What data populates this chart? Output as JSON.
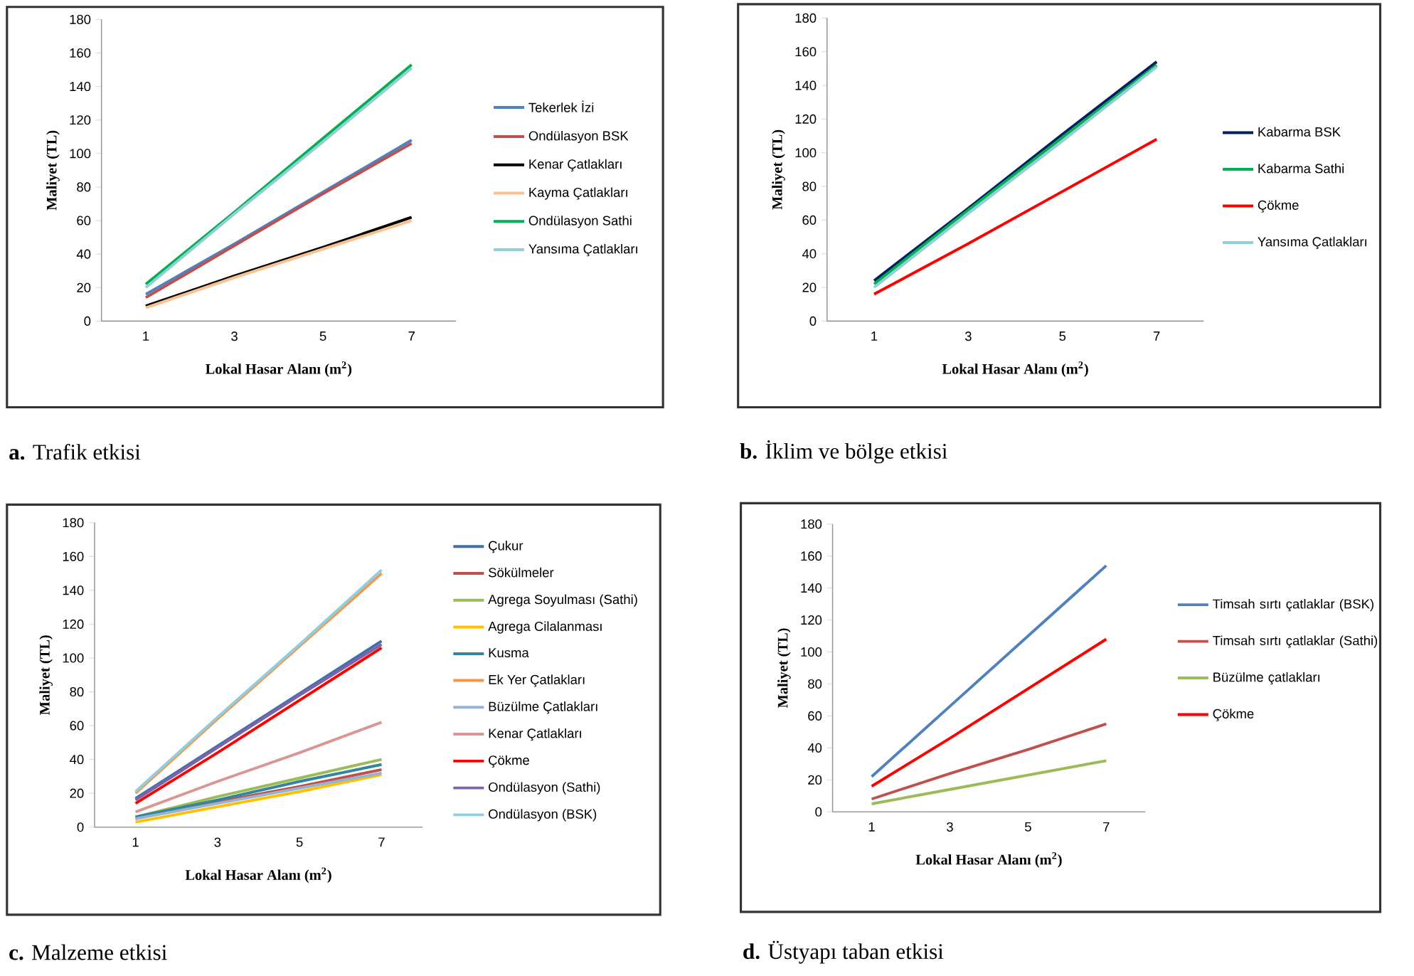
{
  "chart_data": [
    {
      "type": "line",
      "title": "**a.**  Trafik etkisi",
      "xlabel": "Lokal Hasar Alanı (m$^{2}$)",
      "ylabel": "Maliyet (TL)",
      "categories": [
        "1",
        "3",
        "5",
        "7"
      ],
      "ylim": [
        0,
        180
      ],
      "yticks": [
        0,
        20,
        40,
        60,
        80,
        100,
        120,
        140,
        160,
        180
      ],
      "legend": "right",
      "series": [
        {
          "name": "Tekerlek İzi",
          "color": "#4f81bd",
          "values": [
            16,
            46,
            77,
            108
          ]
        },
        {
          "name": "Ondülasyon BSK",
          "color": "#c0504d",
          "values": [
            14,
            45,
            76,
            106
          ]
        },
        {
          "name": "Kenar Çatlakları",
          "color": "#000000",
          "values": [
            9,
            27,
            44,
            62
          ]
        },
        {
          "name": "Kayma Çatlakları",
          "color": "#fac090",
          "values": [
            8,
            26,
            43,
            60
          ]
        },
        {
          "name": "Ondülasyon Sathi",
          "color": "#00b050",
          "values": [
            22,
            65,
            109,
            153
          ]
        },
        {
          "name": "Yansıma Çatlakları",
          "color": "#92cddc",
          "values": [
            20,
            64,
            107,
            151
          ]
        }
      ]
    },
    {
      "type": "line",
      "title": "**b.**  İklim ve bölge etkisi",
      "xlabel": "Lokal Hasar Alanı (m$^{2}$)",
      "ylabel": "Maliyet (TL)",
      "categories": [
        "1",
        "3",
        "5",
        "7"
      ],
      "ylim": [
        0,
        180
      ],
      "yticks": [
        0,
        20,
        40,
        60,
        80,
        100,
        120,
        140,
        160,
        180
      ],
      "legend": "right",
      "series": [
        {
          "name": "Kabarma BSK",
          "color": "#002060",
          "values": [
            24,
            67,
            111,
            154
          ]
        },
        {
          "name": "Kabarma Sathi",
          "color": "#00b050",
          "values": [
            22,
            66,
            109,
            152
          ]
        },
        {
          "name": "Çökme",
          "color": "#ff0000",
          "values": [
            16,
            46,
            77,
            108
          ]
        },
        {
          "name": "Yansıma Çatlakları",
          "color": "#92cddc",
          "values": [
            20,
            64,
            107,
            151
          ]
        }
      ]
    },
    {
      "type": "line",
      "title": "**c.**  Malzeme etkisi",
      "xlabel": "Lokal Hasar Alanı (m$^{2}$)",
      "ylabel": "Maliyet (TL)",
      "categories": [
        "1",
        "3",
        "5",
        "7"
      ],
      "ylim": [
        0,
        180
      ],
      "yticks": [
        0,
        20,
        40,
        60,
        80,
        100,
        120,
        140,
        160,
        180
      ],
      "legend": "right",
      "series": [
        {
          "name": "Çukur",
          "color": "#3f6fb0",
          "values": [
            17,
            48,
            79,
            110
          ]
        },
        {
          "name": "Sökülmeler",
          "color": "#c0504d",
          "values": [
            5,
            15,
            24,
            34
          ]
        },
        {
          "name": "Agrega Soyulması (Sathi)",
          "color": "#9bbb59",
          "values": [
            6,
            18,
            29,
            40
          ]
        },
        {
          "name": "Agrega Cilalanması",
          "color": "#ffc000",
          "values": [
            3,
            12,
            21,
            31
          ]
        },
        {
          "name": "Kusma",
          "color": "#31859c",
          "values": [
            6,
            16,
            27,
            37
          ]
        },
        {
          "name": "Ek Yer Çatlakları",
          "color": "#f79646",
          "values": [
            20,
            64,
            107,
            150
          ]
        },
        {
          "name": "Büzülme Çatlakları",
          "color": "#95b3d7",
          "values": [
            5,
            14,
            23,
            32
          ]
        },
        {
          "name": "Kenar Çatlakları",
          "color": "#d99694",
          "values": [
            9,
            27,
            44,
            62
          ]
        },
        {
          "name": "Çökme",
          "color": "#ff0000",
          "values": [
            14,
            44,
            75,
            106
          ]
        },
        {
          "name": "Ondülasyon (Sathi)",
          "color": "#8064a2",
          "values": [
            16,
            47,
            78,
            108
          ]
        },
        {
          "name": "Ondülasyon (BSK)",
          "color": "#93cddd",
          "values": [
            21,
            65,
            108,
            152
          ]
        }
      ]
    },
    {
      "type": "line",
      "title": "**d.**  Üstyapı taban etkisi",
      "xlabel": "Lokal Hasar Alanı (m$^{2}$)",
      "ylabel": "Maliyet (TL)",
      "categories": [
        "1",
        "3",
        "5",
        "7"
      ],
      "ylim": [
        0,
        180
      ],
      "yticks": [
        0,
        20,
        40,
        60,
        80,
        100,
        120,
        140,
        160,
        180
      ],
      "legend": "right",
      "series": [
        {
          "name": "Timsah sırtı çatlaklar (BSK)",
          "color": "#4f81bd",
          "values": [
            22,
            66,
            110,
            154
          ]
        },
        {
          "name": "Timsah sırtı çatlaklar (Sathi)",
          "color": "#c0504d",
          "values": [
            8,
            24,
            39,
            55
          ]
        },
        {
          "name": "Büzülme çatlakları",
          "color": "#9bbb59",
          "values": [
            5,
            14,
            23,
            32
          ]
        },
        {
          "name": "Çökme",
          "color": "#ff0000",
          "values": [
            16,
            46,
            77,
            108
          ]
        }
      ]
    }
  ]
}
